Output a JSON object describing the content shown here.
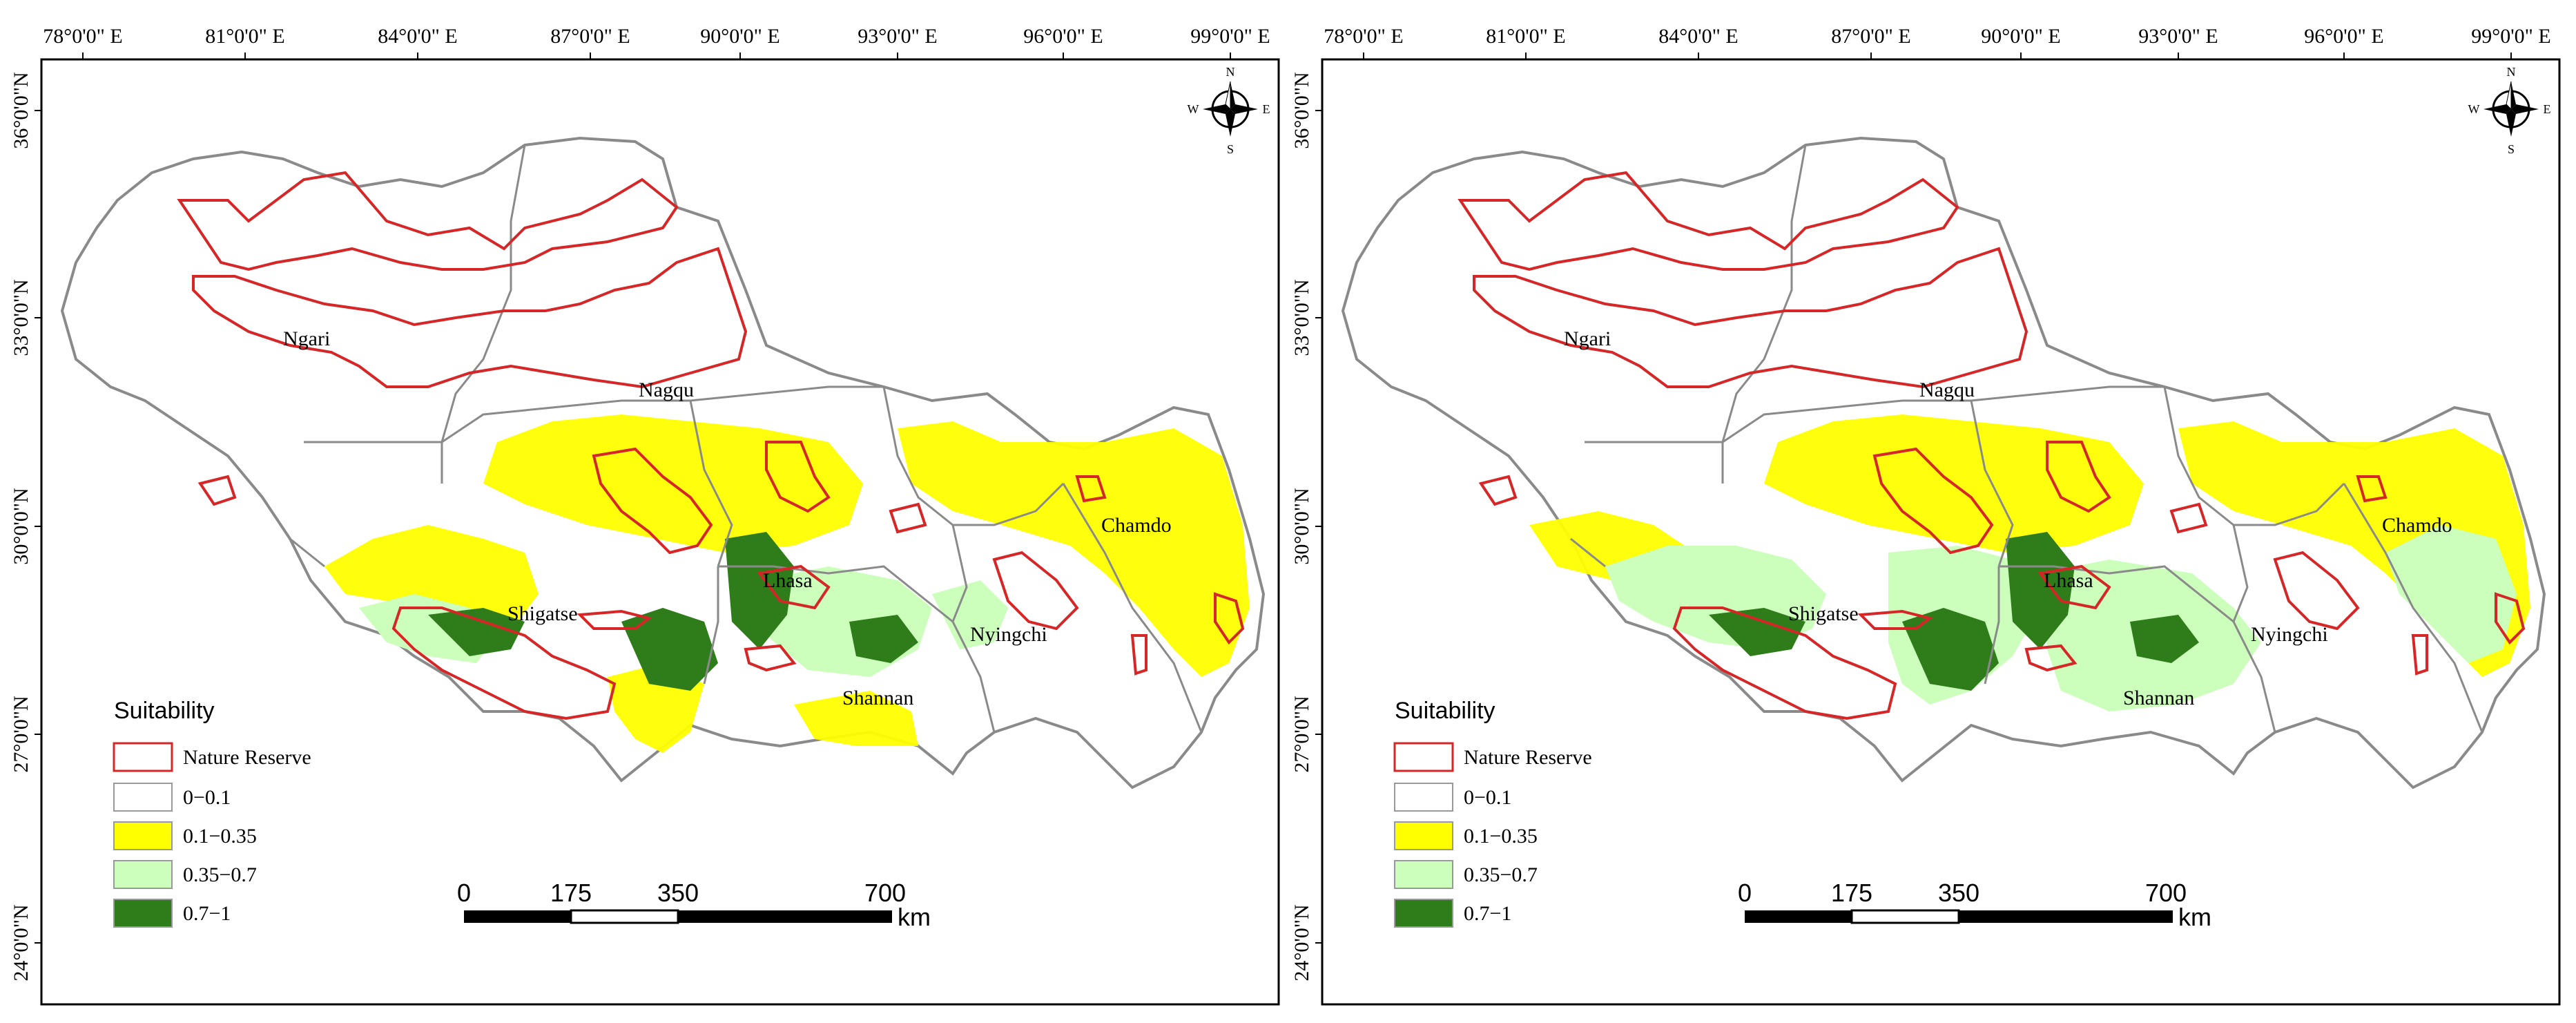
{
  "panels": [
    {
      "name": "left",
      "lon_labels": [
        "78°0'0\" E",
        "81°0'0\" E",
        "84°0'0\" E",
        "87°0'0\" E",
        "90°0'0\" E",
        "93°0'0\" E",
        "96°0'0\" E",
        "99°0'0\" E"
      ],
      "lat_labels": [
        "36°0'0\"N",
        "33°0'0\"N",
        "30°0'0\"N",
        "27°0'0\"N",
        "24°0'0\"N"
      ],
      "regions": [
        "Ngari",
        "Nagqu",
        "Chamdo",
        "Lhasa",
        "Shigatse",
        "Nyingchi",
        "Shannan"
      ],
      "legend": {
        "title": "Suitability",
        "items": [
          {
            "label": "Nature Reserve",
            "color": "#d62728",
            "kind": "outline"
          },
          {
            "label": "0−0.1",
            "color": "#ffffff",
            "kind": "fill"
          },
          {
            "label": "0.1−0.35",
            "color": "#ffff00",
            "kind": "fill"
          },
          {
            "label": "0.35−0.7",
            "color": "#ccffbb",
            "kind": "fill"
          },
          {
            "label": "0.7−1",
            "color": "#2e7d1a",
            "kind": "fill"
          }
        ]
      },
      "scale": {
        "ticks": [
          "0",
          "175",
          "350",
          "700"
        ],
        "unit": "km"
      },
      "compass": {
        "n": "N",
        "s": "S",
        "e": "E",
        "w": "W"
      }
    },
    {
      "name": "right",
      "lon_labels": [
        "78°0'0\" E",
        "81°0'0\" E",
        "84°0'0\" E",
        "87°0'0\" E",
        "90°0'0\" E",
        "93°0'0\" E",
        "96°0'0\" E",
        "99°0'0\" E"
      ],
      "lat_labels": [
        "36°0'0\"N",
        "33°0'0\"N",
        "30°0'0\"N",
        "27°0'0\"N",
        "24°0'0\"N"
      ],
      "regions": [
        "Ngari",
        "Nagqu",
        "Chamdo",
        "Lhasa",
        "Shigatse",
        "Nyingchi",
        "Shannan"
      ],
      "legend": {
        "title": "Suitability",
        "items": [
          {
            "label": "Nature Reserve",
            "color": "#d62728",
            "kind": "outline"
          },
          {
            "label": "0−0.1",
            "color": "#ffffff",
            "kind": "fill"
          },
          {
            "label": "0.1−0.35",
            "color": "#ffff00",
            "kind": "fill"
          },
          {
            "label": "0.35−0.7",
            "color": "#ccffbb",
            "kind": "fill"
          },
          {
            "label": "0.7−1",
            "color": "#2e7d1a",
            "kind": "fill"
          }
        ]
      },
      "scale": {
        "ticks": [
          "0",
          "175",
          "350",
          "700"
        ],
        "unit": "km"
      },
      "compass": {
        "n": "N",
        "s": "S",
        "e": "E",
        "w": "W"
      }
    }
  ]
}
